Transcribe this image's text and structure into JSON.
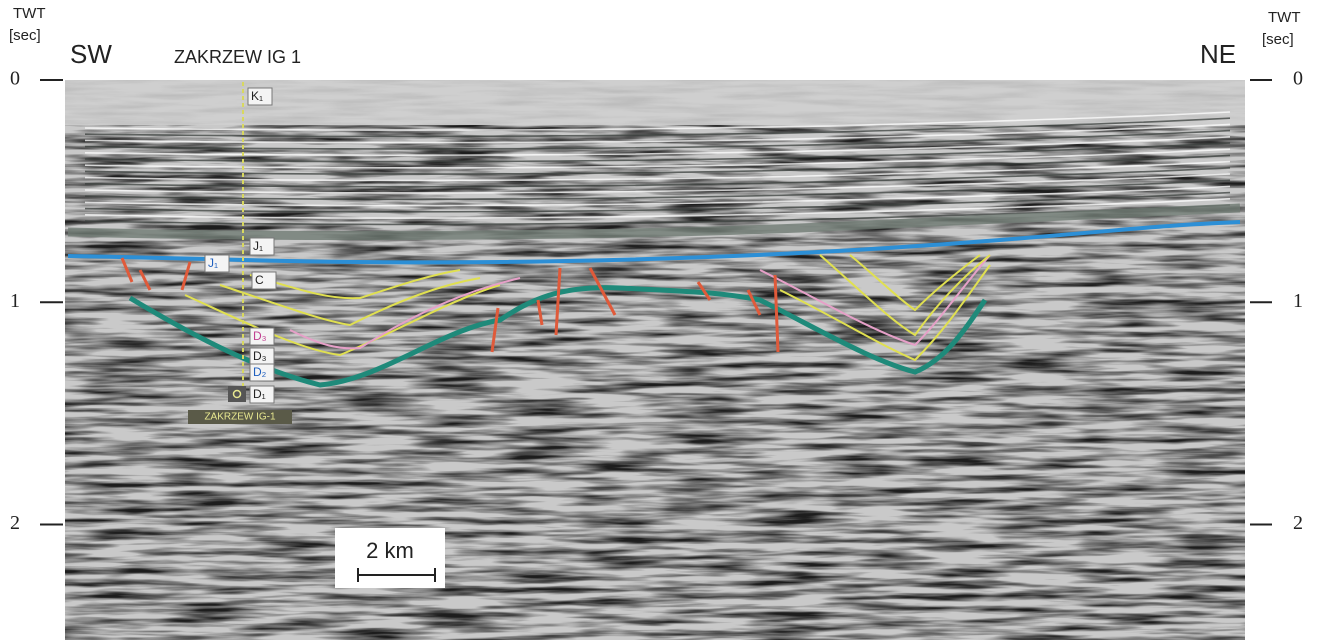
{
  "header": {
    "left_axis_title": "TWT",
    "left_axis_unit": "[sec]",
    "right_axis_title": "TWT",
    "right_axis_unit": "[sec]",
    "left_direction": "SW",
    "right_direction": "NE",
    "well_name": "ZAKRZEW IG 1"
  },
  "axis": {
    "ylim": [
      0,
      2.52
    ],
    "ticks": [
      0,
      1,
      2
    ]
  },
  "horizon_labels": [
    "K₁",
    "J₁",
    "J₁",
    "C",
    "D₃",
    "D₃",
    "D₂",
    "D₁"
  ],
  "well_label": "ZAKRZEW IG-1",
  "scale_bar": "2 km"
}
